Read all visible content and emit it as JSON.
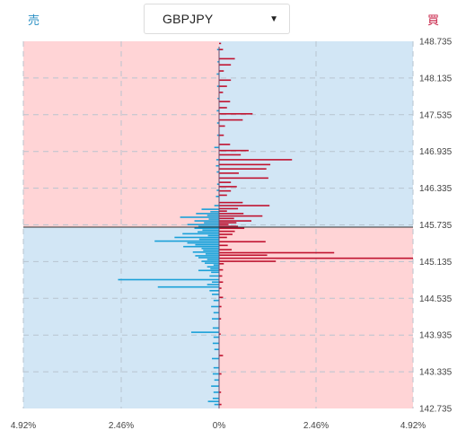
{
  "header": {
    "sell_label": "売",
    "buy_label": "買",
    "pair": "GBPJPY"
  },
  "chart_data": {
    "type": "bar",
    "orientation": "horizontal-diverging",
    "current_price": 145.735,
    "y_ticks": [
      "148.735",
      "148.135",
      "147.535",
      "146.935",
      "146.335",
      "145.735",
      "145.135",
      "144.535",
      "143.935",
      "143.335",
      "142.735"
    ],
    "y_range": [
      142.735,
      148.735
    ],
    "x_ticks": [
      "4.92%",
      "2.46%",
      "0%",
      "2.46%",
      "4.92%"
    ],
    "x_range": [
      -4.92,
      4.92
    ],
    "colors": {
      "sell_bars": "#1aa0d8",
      "buy_bars": "#c0122f",
      "zone_red": "#ffd4d6",
      "zone_blue": "#d2e6f5"
    },
    "series": [
      {
        "name": "売",
        "points": [
          [
            148.6,
            0.05
          ],
          [
            148.4,
            0.04
          ],
          [
            148.2,
            0.06
          ],
          [
            148.0,
            0.05
          ],
          [
            147.8,
            0.04
          ],
          [
            147.6,
            0.06
          ],
          [
            147.4,
            0.05
          ],
          [
            147.2,
            0.05
          ],
          [
            147.0,
            0.12
          ],
          [
            146.8,
            0.07
          ],
          [
            146.7,
            0.08
          ],
          [
            146.6,
            0.06
          ],
          [
            146.4,
            0.05
          ],
          [
            146.3,
            0.06
          ],
          [
            146.2,
            0.08
          ],
          [
            146.05,
            0.12
          ],
          [
            145.99,
            0.44
          ],
          [
            145.95,
            0.22
          ],
          [
            145.92,
            0.58
          ],
          [
            145.89,
            0.3
          ],
          [
            145.86,
            0.98
          ],
          [
            145.83,
            0.26
          ],
          [
            145.8,
            0.62
          ],
          [
            145.77,
            0.38
          ],
          [
            145.74,
            0.8
          ],
          [
            145.71,
            0.52
          ],
          [
            145.68,
            0.62
          ],
          [
            145.65,
            0.42
          ],
          [
            145.62,
            0.54
          ],
          [
            145.59,
            0.92
          ],
          [
            145.56,
            0.28
          ],
          [
            145.53,
            1.12
          ],
          [
            145.5,
            0.5
          ],
          [
            145.47,
            1.62
          ],
          [
            145.44,
            0.8
          ],
          [
            145.41,
            0.6
          ],
          [
            145.38,
            0.9
          ],
          [
            145.35,
            0.44
          ],
          [
            145.32,
            0.4
          ],
          [
            145.29,
            0.66
          ],
          [
            145.26,
            0.34
          ],
          [
            145.23,
            0.6
          ],
          [
            145.2,
            0.52
          ],
          [
            145.17,
            0.3
          ],
          [
            145.14,
            0.44
          ],
          [
            145.11,
            0.36
          ],
          [
            145.08,
            0.14
          ],
          [
            145.05,
            0.3
          ],
          [
            145.02,
            0.22
          ],
          [
            144.99,
            0.52
          ],
          [
            144.96,
            0.2
          ],
          [
            144.9,
            0.24
          ],
          [
            144.84,
            2.54
          ],
          [
            144.8,
            0.18
          ],
          [
            144.76,
            0.3
          ],
          [
            144.72,
            1.54
          ],
          [
            144.66,
            0.24
          ],
          [
            144.6,
            0.18
          ],
          [
            144.5,
            0.14
          ],
          [
            144.4,
            0.2
          ],
          [
            144.3,
            0.14
          ],
          [
            144.2,
            0.18
          ],
          [
            144.05,
            0.16
          ],
          [
            143.98,
            0.7
          ],
          [
            143.9,
            0.14
          ],
          [
            143.8,
            0.16
          ],
          [
            143.7,
            0.12
          ],
          [
            143.55,
            0.18
          ],
          [
            143.4,
            0.14
          ],
          [
            143.3,
            0.16
          ],
          [
            143.2,
            0.12
          ],
          [
            143.1,
            0.2
          ],
          [
            143.0,
            0.14
          ],
          [
            142.9,
            0.16
          ],
          [
            142.85,
            0.28
          ],
          [
            142.8,
            0.12
          ]
        ]
      },
      {
        "name": "買",
        "points": [
          [
            148.7,
            0.05
          ],
          [
            148.6,
            0.1
          ],
          [
            148.45,
            0.4
          ],
          [
            148.35,
            0.3
          ],
          [
            148.25,
            0.12
          ],
          [
            148.1,
            0.3
          ],
          [
            148.0,
            0.2
          ],
          [
            147.9,
            0.1
          ],
          [
            147.75,
            0.28
          ],
          [
            147.65,
            0.2
          ],
          [
            147.55,
            0.85
          ],
          [
            147.45,
            0.6
          ],
          [
            147.35,
            0.15
          ],
          [
            147.2,
            0.12
          ],
          [
            147.05,
            0.28
          ],
          [
            146.95,
            0.75
          ],
          [
            146.88,
            0.55
          ],
          [
            146.8,
            1.85
          ],
          [
            146.72,
            1.3
          ],
          [
            146.65,
            1.2
          ],
          [
            146.58,
            0.5
          ],
          [
            146.5,
            1.25
          ],
          [
            146.43,
            0.3
          ],
          [
            146.36,
            0.45
          ],
          [
            146.29,
            0.3
          ],
          [
            146.22,
            0.2
          ],
          [
            146.1,
            0.6
          ],
          [
            146.05,
            1.28
          ],
          [
            146.0,
            0.48
          ],
          [
            145.96,
            0.2
          ],
          [
            145.92,
            0.62
          ],
          [
            145.88,
            1.1
          ],
          [
            145.84,
            0.38
          ],
          [
            145.8,
            0.82
          ],
          [
            145.77,
            0.44
          ],
          [
            145.74,
            0.24
          ],
          [
            145.71,
            0.48
          ],
          [
            145.68,
            0.64
          ],
          [
            145.63,
            0.4
          ],
          [
            145.58,
            0.34
          ],
          [
            145.53,
            0.2
          ],
          [
            145.46,
            1.18
          ],
          [
            145.4,
            0.22
          ],
          [
            145.33,
            0.32
          ],
          [
            145.28,
            2.92
          ],
          [
            145.24,
            1.22
          ],
          [
            145.19,
            4.92
          ],
          [
            145.14,
            1.44
          ],
          [
            145.1,
            0.12
          ],
          [
            145.0,
            0.1
          ],
          [
            144.9,
            0.08
          ],
          [
            144.8,
            0.1
          ],
          [
            144.7,
            0.06
          ],
          [
            144.55,
            0.1
          ],
          [
            144.4,
            0.06
          ],
          [
            144.2,
            0.05
          ],
          [
            143.95,
            0.04
          ],
          [
            143.6,
            0.1
          ],
          [
            143.3,
            0.06
          ],
          [
            143.0,
            0.05
          ],
          [
            142.8,
            0.06
          ]
        ]
      }
    ]
  }
}
